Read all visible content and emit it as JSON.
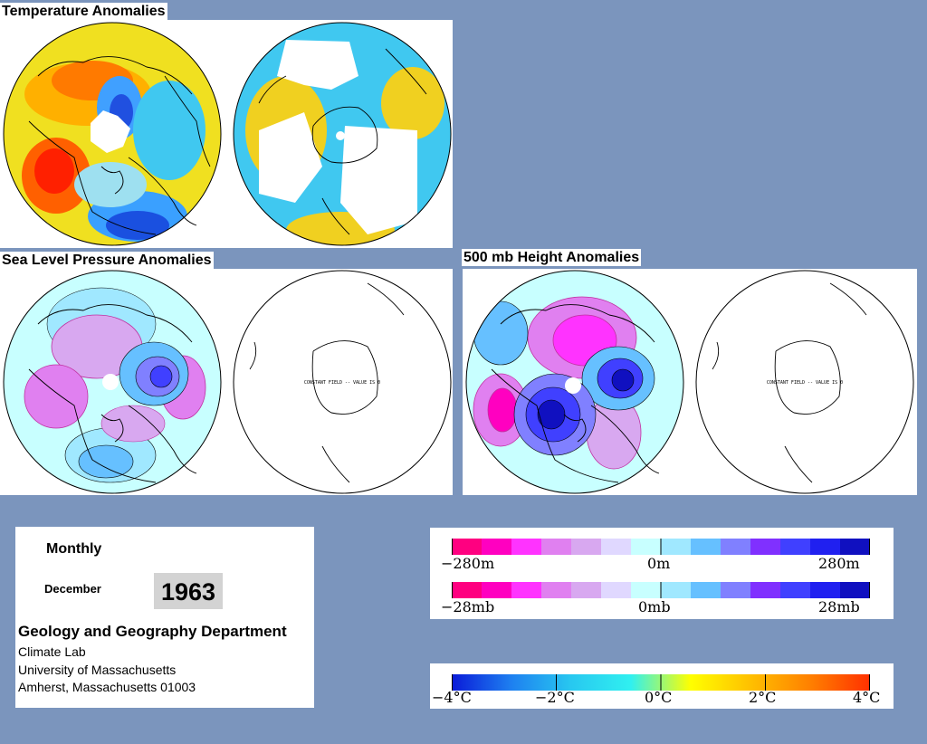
{
  "titles": {
    "temperature": "Temperature Anomalies",
    "slp": "Sea Level Pressure Anomalies",
    "height500": "500 mb Height Anomalies"
  },
  "map_labels": {
    "constant_field": "CONSTANT FIELD -- VALUE IS 0"
  },
  "info": {
    "mode": "Monthly",
    "month": "December",
    "year": "1963",
    "department": "Geology and Geography Department",
    "lab": "Climate Lab",
    "university": "University of Massachusetts",
    "address": "Amherst, Massachusetts 01003"
  },
  "legends": {
    "height": {
      "labels": [
        "−280m",
        "0m",
        "280m"
      ],
      "colors": [
        "#ff0080",
        "#ff00c0",
        "#ff33ff",
        "#e080f0",
        "#d8a8f0",
        "#e0d8ff",
        "#c8ffff",
        "#a0e8ff",
        "#66c0ff",
        "#8080ff",
        "#8030ff",
        "#4040ff",
        "#2020f0",
        "#1010c0"
      ]
    },
    "pressure": {
      "labels": [
        "−28mb",
        "0mb",
        "28mb"
      ],
      "colors": [
        "#ff0080",
        "#ff00c0",
        "#ff33ff",
        "#e080f0",
        "#d8a8f0",
        "#e0d8ff",
        "#c8ffff",
        "#a0e8ff",
        "#66c0ff",
        "#8080ff",
        "#8030ff",
        "#4040ff",
        "#2020f0",
        "#1010c0"
      ]
    },
    "temperature": {
      "labels": [
        "−4°C",
        "−2°C",
        "0°C",
        "2°C",
        "4°C"
      ],
      "stops": [
        "#0a1ad8",
        "#1e80f0",
        "#28c8f0",
        "#30f0f0",
        "#ffff00",
        "#ffc000",
        "#ff8000",
        "#ff3000"
      ]
    }
  }
}
